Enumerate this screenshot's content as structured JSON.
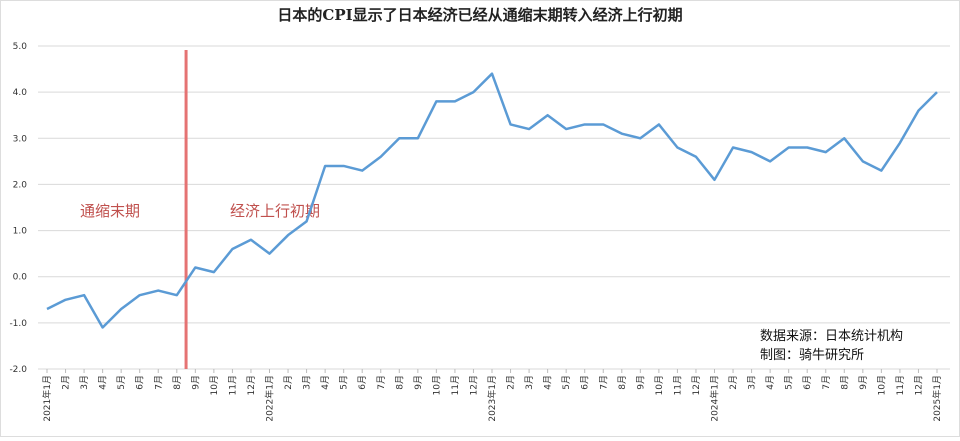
{
  "chart_data": {
    "type": "line",
    "title": "日本的CPI显示了日本经济已经从通缩末期转入经济上行初期",
    "categories": [
      "2021年1月",
      "2月",
      "3月",
      "4月",
      "5月",
      "6月",
      "7月",
      "8月",
      "9月",
      "10月",
      "11月",
      "12月",
      "2022年1月",
      "2月",
      "3月",
      "4月",
      "5月",
      "6月",
      "7月",
      "8月",
      "9月",
      "10月",
      "11月",
      "12月",
      "2023年1月",
      "2月",
      "3月",
      "4月",
      "5月",
      "6月",
      "7月",
      "8月",
      "9月",
      "10月",
      "11月",
      "12月",
      "2024年1月",
      "2月",
      "3月",
      "4月",
      "5月",
      "6月",
      "7月",
      "8月",
      "9月",
      "10月",
      "11月",
      "12月",
      "2025年1月"
    ],
    "values": [
      -0.7,
      -0.5,
      -0.4,
      -1.1,
      -0.7,
      -0.4,
      -0.3,
      -0.4,
      0.2,
      0.1,
      0.6,
      0.8,
      0.5,
      0.9,
      1.2,
      2.4,
      2.4,
      2.3,
      2.6,
      3.0,
      3.0,
      3.8,
      3.8,
      4.0,
      4.4,
      3.3,
      3.2,
      3.5,
      3.2,
      3.3,
      3.3,
      3.1,
      3.0,
      3.3,
      2.8,
      2.6,
      2.1,
      2.8,
      2.7,
      2.5,
      2.8,
      2.8,
      2.7,
      3.0,
      2.5,
      2.3,
      2.9,
      3.6,
      4.0
    ],
    "color": "#5b9bd5",
    "ylim": [
      -2,
      5
    ],
    "yticks": [
      {
        "value": -2,
        "label": "-2.0"
      },
      {
        "value": -1,
        "label": "-1.0"
      },
      {
        "value": 0,
        "label": "0.0"
      },
      {
        "value": 1,
        "label": "1.0"
      },
      {
        "value": 2,
        "label": "2.0"
      },
      {
        "value": 3,
        "label": "3.0"
      },
      {
        "value": 4,
        "label": "4.0"
      },
      {
        "value": 5,
        "label": "5.0"
      }
    ],
    "grid": true,
    "annotations": [
      "通缩末期",
      "经济上行初期"
    ],
    "source": [
      "数据来源：日本统计机构",
      "制图：骑牛研究所"
    ]
  }
}
